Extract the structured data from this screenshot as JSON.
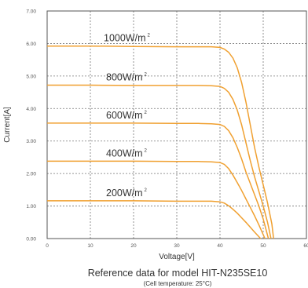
{
  "chart_data": {
    "type": "line",
    "xlabel": "Voltage[V]",
    "ylabel": "Current[A]",
    "xlim": [
      0,
      60
    ],
    "ylim": [
      0,
      7
    ],
    "x_ticks": [
      "0",
      "10",
      "20",
      "30",
      "40",
      "50",
      "60"
    ],
    "y_ticks": [
      "0.00",
      "1.00",
      "2.00",
      "3.00",
      "4.00",
      "5.00",
      "6.00",
      "7.00"
    ],
    "grid": true,
    "series": [
      {
        "name": "1000W/m",
        "unit_sup": "2",
        "color": "#f0a030",
        "x": [
          0,
          10,
          20,
          30,
          35,
          38,
          40,
          41,
          42,
          43,
          44,
          45,
          46,
          47,
          48,
          49,
          50,
          51,
          52,
          52.4
        ],
        "y": [
          5.92,
          5.92,
          5.91,
          5.9,
          5.9,
          5.9,
          5.88,
          5.83,
          5.73,
          5.55,
          5.25,
          4.8,
          4.2,
          3.5,
          2.8,
          2.2,
          1.65,
          1.1,
          0.45,
          0
        ]
      },
      {
        "name": "800W/m",
        "unit_sup": "2",
        "color": "#f0a030",
        "x": [
          0,
          10,
          20,
          30,
          35,
          38,
          40,
          41,
          42,
          43,
          44,
          45,
          46,
          47,
          48,
          49,
          50,
          51,
          51.8
        ],
        "y": [
          4.72,
          4.72,
          4.71,
          4.71,
          4.71,
          4.7,
          4.68,
          4.62,
          4.5,
          4.28,
          3.95,
          3.5,
          2.95,
          2.4,
          1.9,
          1.45,
          1.0,
          0.5,
          0
        ]
      },
      {
        "name": "600W/m",
        "unit_sup": "2",
        "color": "#f0a030",
        "x": [
          0,
          10,
          20,
          30,
          35,
          38,
          40,
          41,
          42,
          43,
          44,
          45,
          46,
          47,
          48,
          49,
          50,
          51.2
        ],
        "y": [
          3.55,
          3.55,
          3.55,
          3.54,
          3.54,
          3.53,
          3.51,
          3.45,
          3.32,
          3.1,
          2.8,
          2.45,
          2.05,
          1.7,
          1.35,
          1.0,
          0.6,
          0
        ]
      },
      {
        "name": "400W/m",
        "unit_sup": "2",
        "color": "#f0a030",
        "x": [
          0,
          10,
          20,
          30,
          35,
          38,
          40,
          41,
          42,
          43,
          44,
          45,
          46,
          47,
          48,
          49,
          50.4
        ],
        "y": [
          2.38,
          2.38,
          2.38,
          2.37,
          2.37,
          2.36,
          2.34,
          2.28,
          2.15,
          1.95,
          1.72,
          1.48,
          1.22,
          0.96,
          0.7,
          0.42,
          0
        ]
      },
      {
        "name": "200W/m",
        "unit_sup": "2",
        "color": "#f0a030",
        "x": [
          0,
          10,
          20,
          30,
          35,
          38,
          40,
          41,
          42,
          43,
          44,
          45,
          46,
          47,
          48,
          49.4
        ],
        "y": [
          1.16,
          1.16,
          1.16,
          1.15,
          1.15,
          1.15,
          1.13,
          1.09,
          1.01,
          0.9,
          0.78,
          0.64,
          0.5,
          0.35,
          0.2,
          0
        ]
      }
    ]
  },
  "caption": {
    "line1": "Reference data for model HIT-N235SE10",
    "line2": "(Cell temperature: 25°C)"
  }
}
